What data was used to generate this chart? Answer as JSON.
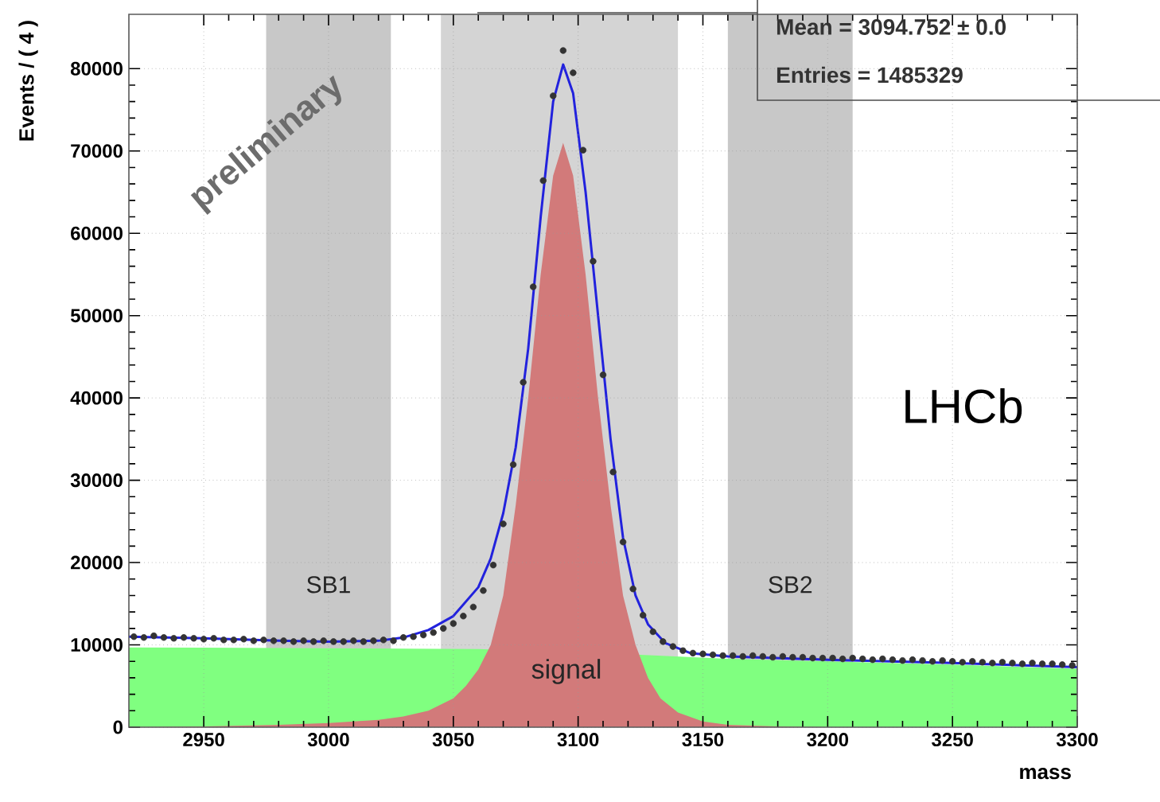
{
  "chart_data": {
    "type": "line",
    "xlabel": "mass",
    "ylabel": "Events / ( 4 )",
    "xlim": [
      2920,
      3300
    ],
    "ylim": [
      0,
      86600
    ],
    "xticks": [
      2950,
      3000,
      3050,
      3100,
      3150,
      3200,
      3250,
      3300
    ],
    "yticks": [
      0,
      10000,
      20000,
      30000,
      40000,
      50000,
      60000,
      70000,
      80000
    ],
    "grid": true,
    "bands": [
      {
        "axis": "x",
        "from": 2975,
        "to": 3025,
        "label": "SB1",
        "color": "#c8c8c8"
      },
      {
        "axis": "x",
        "from": 3045,
        "to": 3140,
        "color": "#d4d4d4"
      },
      {
        "axis": "x",
        "from": 3160,
        "to": 3210,
        "label": "SB2",
        "color": "#c8c8c8"
      }
    ],
    "annotations": [
      "preliminary",
      "LHCb",
      "Mean =  3094.752 ± 0.0",
      "Entries =  1485329",
      "signal"
    ],
    "series": [
      {
        "type": "area",
        "color": "#80ff80",
        "x": [
          2920,
          3000,
          3060,
          3125,
          3160,
          3200,
          3250,
          3300
        ],
        "values": [
          9700,
          9600,
          9500,
          8800,
          8300,
          8000,
          7600,
          7100
        ]
      },
      {
        "type": "area",
        "color": "#d27a7a",
        "x": [
          2920,
          2950,
          2980,
          3000,
          3020,
          3030,
          3040,
          3050,
          3055,
          3060,
          3065,
          3070,
          3075,
          3080,
          3085,
          3090,
          3094,
          3098,
          3103,
          3108,
          3113,
          3118,
          3123,
          3128,
          3133,
          3140,
          3150,
          3160,
          3180,
          3200
        ],
        "values": [
          0,
          100,
          300,
          500,
          900,
          1300,
          2000,
          3500,
          5000,
          7000,
          10000,
          16000,
          27000,
          40000,
          55000,
          67000,
          71000,
          67000,
          55000,
          40000,
          27000,
          16000,
          10000,
          6000,
          3500,
          1800,
          700,
          300,
          100,
          0
        ]
      },
      {
        "color": "#2222dd",
        "x": [
          2920,
          2950,
          2980,
          3000,
          3020,
          3030,
          3040,
          3050,
          3060,
          3065,
          3070,
          3075,
          3080,
          3085,
          3090,
          3094,
          3098,
          3103,
          3108,
          3113,
          3118,
          3123,
          3128,
          3135,
          3145,
          3160,
          3200,
          3250,
          3300
        ],
        "values": [
          11000,
          10800,
          10500,
          10400,
          10500,
          10900,
          11800,
          13500,
          17000,
          20500,
          26000,
          34000,
          46000,
          62000,
          76000,
          80500,
          77000,
          65000,
          50000,
          35000,
          23000,
          16000,
          12500,
          10200,
          9000,
          8600,
          8200,
          7800,
          7300
        ]
      },
      {
        "type": "scatter",
        "color": "#333333",
        "marker": "circle",
        "x": [
          2922,
          2926,
          2930,
          2934,
          2938,
          2942,
          2946,
          2950,
          2954,
          2958,
          2962,
          2966,
          2970,
          2974,
          2978,
          2982,
          2986,
          2990,
          2994,
          2998,
          3002,
          3006,
          3010,
          3014,
          3018,
          3022,
          3026,
          3030,
          3034,
          3038,
          3042,
          3046,
          3050,
          3054,
          3058,
          3062,
          3066,
          3070,
          3074,
          3078,
          3082,
          3086,
          3090,
          3094,
          3098,
          3102,
          3106,
          3110,
          3114,
          3118,
          3122,
          3126,
          3130,
          3134,
          3138,
          3142,
          3146,
          3150,
          3154,
          3158,
          3162,
          3166,
          3170,
          3174,
          3178,
          3182,
          3186,
          3190,
          3194,
          3198,
          3202,
          3206,
          3210,
          3214,
          3218,
          3222,
          3226,
          3230,
          3234,
          3238,
          3242,
          3246,
          3250,
          3254,
          3258,
          3262,
          3266,
          3270,
          3274,
          3278,
          3282,
          3286,
          3290,
          3294,
          3298
        ],
        "values": [
          11000,
          10900,
          11100,
          10900,
          10800,
          10900,
          10800,
          10700,
          10800,
          10600,
          10600,
          10700,
          10500,
          10600,
          10500,
          10500,
          10400,
          10500,
          10400,
          10500,
          10400,
          10400,
          10500,
          10400,
          10500,
          10600,
          10500,
          10900,
          11000,
          11200,
          11500,
          12000,
          12600,
          13500,
          14600,
          16600,
          19700,
          24700,
          31900,
          41900,
          53500,
          66400,
          76700,
          82200,
          79500,
          70100,
          56600,
          42800,
          31000,
          22500,
          16800,
          13600,
          11600,
          10400,
          9800,
          9300,
          9000,
          8900,
          8800,
          8700,
          8700,
          8600,
          8700,
          8600,
          8500,
          8600,
          8500,
          8500,
          8400,
          8400,
          8400,
          8300,
          8400,
          8300,
          8200,
          8300,
          8200,
          8100,
          8200,
          8100,
          8000,
          8100,
          8000,
          7900,
          8000,
          7900,
          7800,
          7900,
          7800,
          7700,
          7800,
          7700,
          7700,
          7600,
          7500
        ]
      }
    ]
  }
}
